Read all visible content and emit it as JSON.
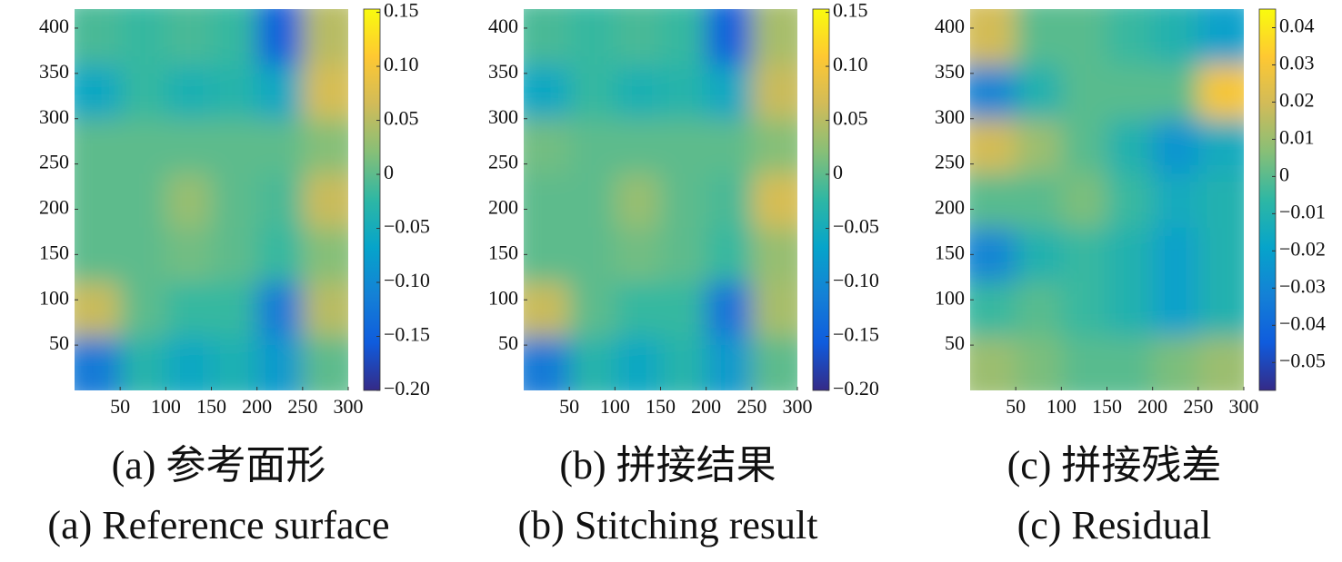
{
  "chart_data": [
    {
      "type": "heatmap",
      "caption_cn": "(a) 参考面形",
      "caption_en": "(a) Reference surface",
      "xlim": [
        0,
        300
      ],
      "ylim": [
        0,
        421
      ],
      "xticks": [
        50,
        100,
        150,
        200,
        250,
        300
      ],
      "yticks": [
        50,
        100,
        150,
        200,
        250,
        300,
        350,
        400
      ],
      "x_bins": [
        0,
        50,
        100,
        150,
        200,
        250,
        300
      ],
      "y_bins": [
        0,
        60,
        120,
        180,
        240,
        300,
        360,
        421
      ],
      "z": [
        [
          -0.12,
          -0.03,
          -0.06,
          -0.04,
          -0.08,
          0.0
        ],
        [
          0.06,
          0.0,
          -0.02,
          -0.02,
          -0.12,
          0.05
        ],
        [
          0.0,
          0.0,
          0.01,
          0.0,
          -0.02,
          0.02
        ],
        [
          0.0,
          0.0,
          0.03,
          0.0,
          -0.01,
          0.06
        ],
        [
          0.0,
          0.0,
          0.0,
          0.0,
          0.0,
          0.02
        ],
        [
          -0.06,
          -0.02,
          -0.04,
          -0.03,
          -0.06,
          0.07
        ],
        [
          -0.01,
          -0.02,
          -0.01,
          -0.02,
          -0.15,
          0.05
        ]
      ],
      "clim": [
        -0.2,
        0.153
      ],
      "cticks": [
        0.15,
        {
          "value": 0.1,
          "label": "0.10"
        },
        0.05,
        0,
        {
          "value": -0.05,
          "label": "−0.05"
        },
        {
          "value": -0.1,
          "label": "−0.10"
        },
        {
          "value": -0.15,
          "label": "−0.15"
        },
        {
          "value": -0.2,
          "label": "−0.20"
        }
      ],
      "colormap": [
        "#352a87",
        "#0f5cdd",
        "#1481d6",
        "#06a4ca",
        "#2eb7a4",
        "#87bf77",
        "#d1bb59",
        "#fec832",
        "#f9fb0e"
      ]
    },
    {
      "type": "heatmap",
      "caption_cn": "(b) 拼接结果",
      "caption_en": "(b) Stitching result",
      "xlim": [
        0,
        300
      ],
      "ylim": [
        0,
        421
      ],
      "xticks": [
        50,
        100,
        150,
        200,
        250,
        300
      ],
      "yticks": [
        50,
        100,
        150,
        200,
        250,
        300,
        350,
        400
      ],
      "x_bins": [
        0,
        50,
        100,
        150,
        200,
        250,
        300
      ],
      "y_bins": [
        0,
        60,
        120,
        180,
        240,
        300,
        360,
        421
      ],
      "z": [
        [
          -0.12,
          -0.03,
          -0.06,
          -0.03,
          -0.08,
          0.0
        ],
        [
          0.06,
          0.0,
          -0.02,
          -0.02,
          -0.13,
          0.04
        ],
        [
          0.0,
          0.0,
          0.01,
          0.0,
          -0.02,
          0.03
        ],
        [
          0.0,
          0.0,
          0.03,
          0.0,
          -0.01,
          0.07
        ],
        [
          0.01,
          0.0,
          0.0,
          0.0,
          0.0,
          0.02
        ],
        [
          -0.06,
          -0.02,
          -0.04,
          -0.03,
          -0.06,
          0.06
        ],
        [
          -0.01,
          -0.02,
          -0.01,
          -0.02,
          -0.15,
          0.04
        ]
      ],
      "clim": [
        -0.2,
        0.153
      ],
      "cticks": [
        0.15,
        {
          "value": 0.1,
          "label": "0.10"
        },
        0.05,
        0,
        {
          "value": -0.05,
          "label": "−0.05"
        },
        {
          "value": -0.1,
          "label": "−0.10"
        },
        {
          "value": -0.15,
          "label": "−0.15"
        },
        {
          "value": -0.2,
          "label": "−0.20"
        }
      ],
      "colormap": [
        "#352a87",
        "#0f5cdd",
        "#1481d6",
        "#06a4ca",
        "#2eb7a4",
        "#87bf77",
        "#d1bb59",
        "#fec832",
        "#f9fb0e"
      ]
    },
    {
      "type": "heatmap",
      "caption_cn": "(c) 拼接残差",
      "caption_en": "(c) Residual",
      "xlim": [
        0,
        300
      ],
      "ylim": [
        0,
        421
      ],
      "xticks": [
        50,
        100,
        150,
        200,
        250,
        300
      ],
      "yticks": [
        50,
        100,
        150,
        200,
        250,
        300,
        350,
        400
      ],
      "x_bins": [
        0,
        50,
        100,
        150,
        200,
        250,
        300
      ],
      "y_bins": [
        0,
        60,
        120,
        180,
        240,
        300,
        360,
        421
      ],
      "z": [
        [
          0.01,
          0.005,
          0.0,
          0.0,
          0.005,
          0.01
        ],
        [
          -0.005,
          0.0,
          -0.005,
          -0.01,
          -0.02,
          -0.01
        ],
        [
          -0.03,
          -0.01,
          -0.005,
          -0.01,
          -0.02,
          -0.01
        ],
        [
          0.0,
          0.0,
          0.005,
          -0.005,
          -0.015,
          -0.01
        ],
        [
          0.02,
          0.01,
          0.0,
          -0.01,
          -0.025,
          -0.015
        ],
        [
          -0.03,
          -0.01,
          0.0,
          0.0,
          0.0,
          0.03
        ],
        [
          0.02,
          0.0,
          0.0,
          -0.005,
          -0.01,
          -0.02
        ]
      ],
      "clim": [
        -0.0575,
        0.045
      ],
      "cticks": [
        0.04,
        0.03,
        0.02,
        0.01,
        0,
        {
          "value": -0.01,
          "label": "−0.01"
        },
        {
          "value": -0.02,
          "label": "−0.02"
        },
        {
          "value": -0.03,
          "label": "−0.03"
        },
        {
          "value": -0.04,
          "label": "−0.04"
        },
        {
          "value": -0.05,
          "label": "−0.05"
        }
      ],
      "colormap": [
        "#352a87",
        "#0f5cdd",
        "#1481d6",
        "#06a4ca",
        "#2eb7a4",
        "#87bf77",
        "#d1bb59",
        "#fec832",
        "#f9fb0e"
      ]
    }
  ]
}
